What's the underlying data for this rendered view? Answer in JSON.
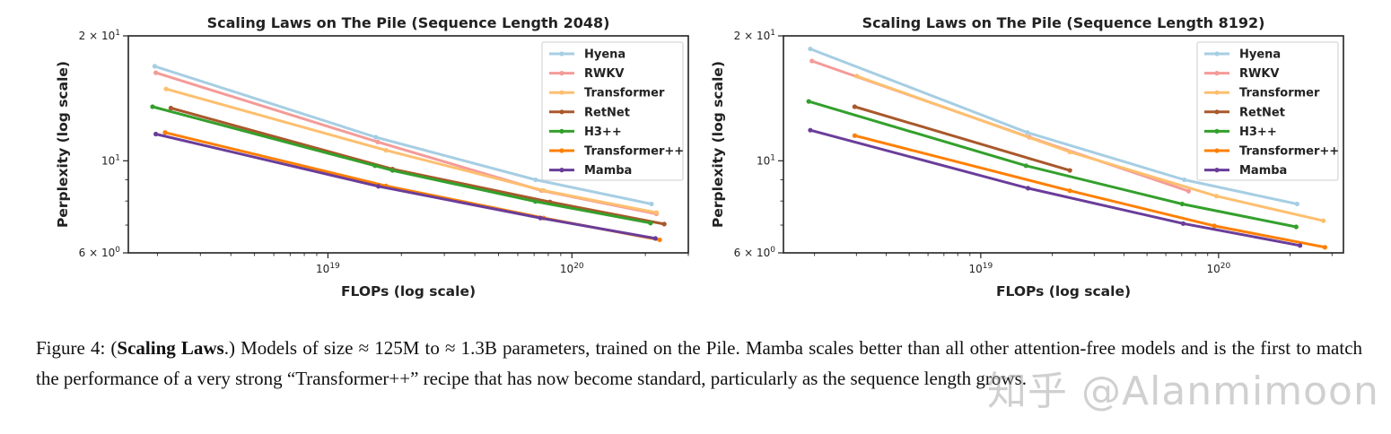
{
  "colors": {
    "Hyena": "#a6cee3",
    "RWKV": "#f49b98",
    "Transformer": "#fdbf6f",
    "RetNet": "#a9582b",
    "H3++": "#33a02c",
    "Transformer++": "#ff7f00",
    "Mamba": "#6a3d9a"
  },
  "chart_data": [
    {
      "type": "line",
      "title": "Scaling Laws on The Pile (Sequence Length 2048)",
      "xlabel": "FLOPs (log scale)",
      "ylabel": "Perplexity (log scale)",
      "xscale": "log",
      "yscale": "log",
      "xlim": [
        1.52e+18,
        3e+20
      ],
      "ylim": [
        6,
        20
      ],
      "xticks": [
        {
          "value": 1e+19,
          "label": "10^19"
        },
        {
          "value": 1e+20,
          "label": "10^20"
        }
      ],
      "yticks": [
        {
          "value": 20,
          "label": "2 × 10^1"
        },
        {
          "value": 10,
          "label": "10^1"
        },
        {
          "value": 6,
          "label": "6 × 10^0"
        }
      ],
      "legend": "top-right",
      "grid": false,
      "series": [
        {
          "name": "Hyena",
          "x": [
            1.95e+18,
            1.57e+19,
            7.1e+19,
            2.12e+20
          ],
          "y": [
            16.9,
            11.4,
            9.0,
            7.87
          ]
        },
        {
          "name": "RWKV",
          "x": [
            1.97e+18,
            1.6e+19,
            7.5e+19,
            2.22e+20
          ],
          "y": [
            16.3,
            11.1,
            8.48,
            7.45
          ]
        },
        {
          "name": "Transformer",
          "x": [
            2.17e+18,
            1.73e+19,
            7.66e+19,
            2.22e+20
          ],
          "y": [
            14.9,
            10.6,
            8.48,
            7.5
          ]
        },
        {
          "name": "RetNet",
          "x": [
            2.27e+18,
            1.84e+19,
            8.13e+19,
            2.39e+20
          ],
          "y": [
            13.4,
            9.55,
            7.96,
            7.04
          ]
        },
        {
          "name": "H3++",
          "x": [
            1.91e+18,
            1.56e+19,
            1.84e+19,
            7.08e+19,
            2.1e+20
          ],
          "y": [
            13.5,
            9.73,
            9.48,
            7.98,
            7.08
          ]
        },
        {
          "name": "Transformer++",
          "x": [
            2.15e+18,
            1.73e+19,
            7.66e+19,
            2.29e+20
          ],
          "y": [
            11.7,
            8.7,
            7.28,
            6.45
          ]
        },
        {
          "name": "Mamba",
          "x": [
            1.97e+18,
            1.61e+19,
            7.43e+19,
            2.2e+20
          ],
          "y": [
            11.6,
            8.68,
            7.28,
            6.5
          ]
        }
      ]
    },
    {
      "type": "line",
      "title": "Scaling Laws on The Pile (Sequence Length 8192)",
      "xlabel": "FLOPs (log scale)",
      "ylabel": "Perplexity (log scale)",
      "xscale": "log",
      "yscale": "log",
      "xlim": [
        1.48e+18,
        3.35e+20
      ],
      "ylim": [
        6,
        20
      ],
      "xticks": [
        {
          "value": 1e+19,
          "label": "10^19"
        },
        {
          "value": 1e+20,
          "label": "10^20"
        }
      ],
      "yticks": [
        {
          "value": 20,
          "label": "2 × 10^1"
        },
        {
          "value": 10,
          "label": "10^1"
        },
        {
          "value": 6,
          "label": "6 × 10^0"
        }
      ],
      "legend": "top-right",
      "grid": false,
      "series": [
        {
          "name": "Hyena",
          "x": [
            1.92e+18,
            1.57e+19,
            7.18e+19,
            2.14e+20
          ],
          "y": [
            18.6,
            11.7,
            9.0,
            7.87
          ]
        },
        {
          "name": "RWKV",
          "x": [
            1.95e+18,
            1.6e+19,
            7.48e+19
          ],
          "y": [
            17.4,
            11.4,
            8.45
          ]
        },
        {
          "name": "Transformer",
          "x": [
            3.01e+18,
            2.37e+19,
            9.8e+19,
            2.76e+20
          ],
          "y": [
            16.0,
            10.5,
            8.22,
            7.17
          ]
        },
        {
          "name": "RetNet",
          "x": [
            2.95e+18,
            2.37e+19
          ],
          "y": [
            13.5,
            9.48
          ]
        },
        {
          "name": "H3++",
          "x": [
            1.89e+18,
            1.55e+19,
            7.03e+19,
            2.12e+20
          ],
          "y": [
            13.9,
            9.73,
            7.87,
            6.93
          ]
        },
        {
          "name": "Transformer++",
          "x": [
            2.95e+18,
            2.37e+19,
            9.6e+19,
            2.8e+20
          ],
          "y": [
            11.5,
            8.47,
            6.97,
            6.19
          ]
        },
        {
          "name": "Mamba",
          "x": [
            1.92e+18,
            1.58e+19,
            7.1e+19,
            2.2e+20
          ],
          "y": [
            11.85,
            8.59,
            7.06,
            6.25
          ]
        }
      ]
    }
  ],
  "caption": {
    "label": "Figure 4: (",
    "bold": "Scaling Laws",
    "text": ".) Models of size ≈ 125M to ≈ 1.3B parameters, trained on the Pile. Mamba scales better than all other attention-free models and is the first to match the performance of a very strong “Transformer++” recipe that has now become standard, particularly as the sequence length grows."
  },
  "watermark": "知乎 @Alanmimoon"
}
